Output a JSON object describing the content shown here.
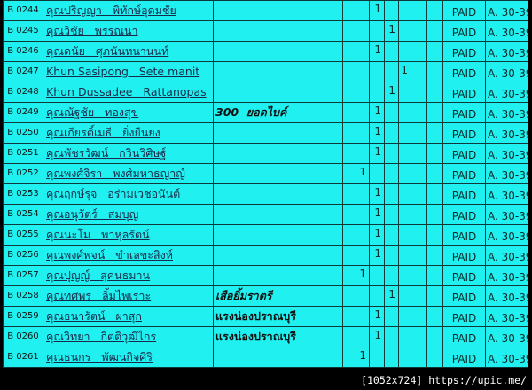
{
  "rows": [
    {
      "code": "B 0244",
      "name": "คุณปริญญา   พิทักษ์อุดมชัย",
      "note": "",
      "italic": false,
      "col": 3,
      "status": "PAID",
      "group": "A. 30-39"
    },
    {
      "code": "B 0245",
      "name": "คุณวิชัย   พรรณนา",
      "note": "",
      "italic": false,
      "col": 4,
      "status": "PAID",
      "group": "A. 30-39"
    },
    {
      "code": "B 0246",
      "name": "คุณดนัย   ศุภนันทนานนท์",
      "note": "",
      "italic": false,
      "col": 3,
      "status": "PAID",
      "group": "A. 30-39"
    },
    {
      "code": "B 0247",
      "name": "Khun Sasipong   Sete manit",
      "note": "",
      "italic": false,
      "col": 5,
      "status": "PAID",
      "group": "A. 30-39"
    },
    {
      "code": "B 0248",
      "name": "Khun Dussadee   Rattanopas",
      "note": "",
      "italic": false,
      "col": 4,
      "status": "PAID",
      "group": "A. 30-39"
    },
    {
      "code": "B 0249",
      "name": "คุณณัฐชัย   ทองสุข",
      "note": "300  ยอดไบค์",
      "italic": true,
      "col": 3,
      "status": "PAID",
      "group": "A. 30-39"
    },
    {
      "code": "B 0250",
      "name": "คุณเกียรติ์เมธี   ยิ่งยืนยง",
      "note": "",
      "italic": false,
      "col": 3,
      "status": "PAID",
      "group": "A. 30-39"
    },
    {
      "code": "B 0251",
      "name": "คุณพัชรวัฒน์   กวินวิศิษฐ์",
      "note": "",
      "italic": false,
      "col": 3,
      "status": "PAID",
      "group": "A. 30-39"
    },
    {
      "code": "B 0252",
      "name": "คุณพงศ์จิรา   พงศ์มหาธญาญ์",
      "note": "",
      "italic": false,
      "col": 2,
      "status": "PAID",
      "group": "A. 30-39"
    },
    {
      "code": "B 0253",
      "name": "คุณฤกษ์รุจ   อร่ามเวชอนันต์",
      "note": "",
      "italic": false,
      "col": 3,
      "status": "PAID",
      "group": "A. 30-39"
    },
    {
      "code": "B 0254",
      "name": "คุณอนุวัตร์   สมบุญ",
      "note": "",
      "italic": false,
      "col": 3,
      "status": "PAID",
      "group": "A. 30-39"
    },
    {
      "code": "B 0255",
      "name": "คุณนะโม   พาหุลรัตน์",
      "note": "",
      "italic": false,
      "col": 3,
      "status": "PAID",
      "group": "A. 30-39"
    },
    {
      "code": "B 0256",
      "name": "คุณพงศ์พจน์   ขำเลขะสิงห์",
      "note": "",
      "italic": false,
      "col": 3,
      "status": "PAID",
      "group": "A. 30-39"
    },
    {
      "code": "B 0257",
      "name": "คุณปุญญ์   สุคนธมาน",
      "note": "",
      "italic": false,
      "col": 2,
      "status": "PAID",
      "group": "A. 30-39"
    },
    {
      "code": "B 0258",
      "name": "คุณทศพร   ลิ้มไพเราะ",
      "note": "เสือยิ้มราตรี",
      "italic": true,
      "col": 4,
      "status": "PAID",
      "group": "A. 30-39"
    },
    {
      "code": "B 0259",
      "name": "คุณธนารัตน์   ผาสุก",
      "note": "แรงน่องปราณบุรี",
      "italic": false,
      "col": 3,
      "status": "PAID",
      "group": "A. 30-39"
    },
    {
      "code": "B 0260",
      "name": "คุณวิทยา   กิตติวุฒิไกร",
      "note": "แรงน่องปราณบุรี",
      "italic": false,
      "col": 3,
      "status": "PAID",
      "group": "A. 30-39"
    },
    {
      "code": "B 0261",
      "name": "คุณธนกร   พัฒนกิจศิริ",
      "note": "",
      "italic": false,
      "col": 2,
      "status": "PAID",
      "group": "A. 30-39"
    }
  ],
  "mark": "1",
  "watermark": "[1052x724] https://upic.me/",
  "colors": {
    "cell": "#20f0f0",
    "grid": "#103a3a",
    "background": "#000000"
  }
}
